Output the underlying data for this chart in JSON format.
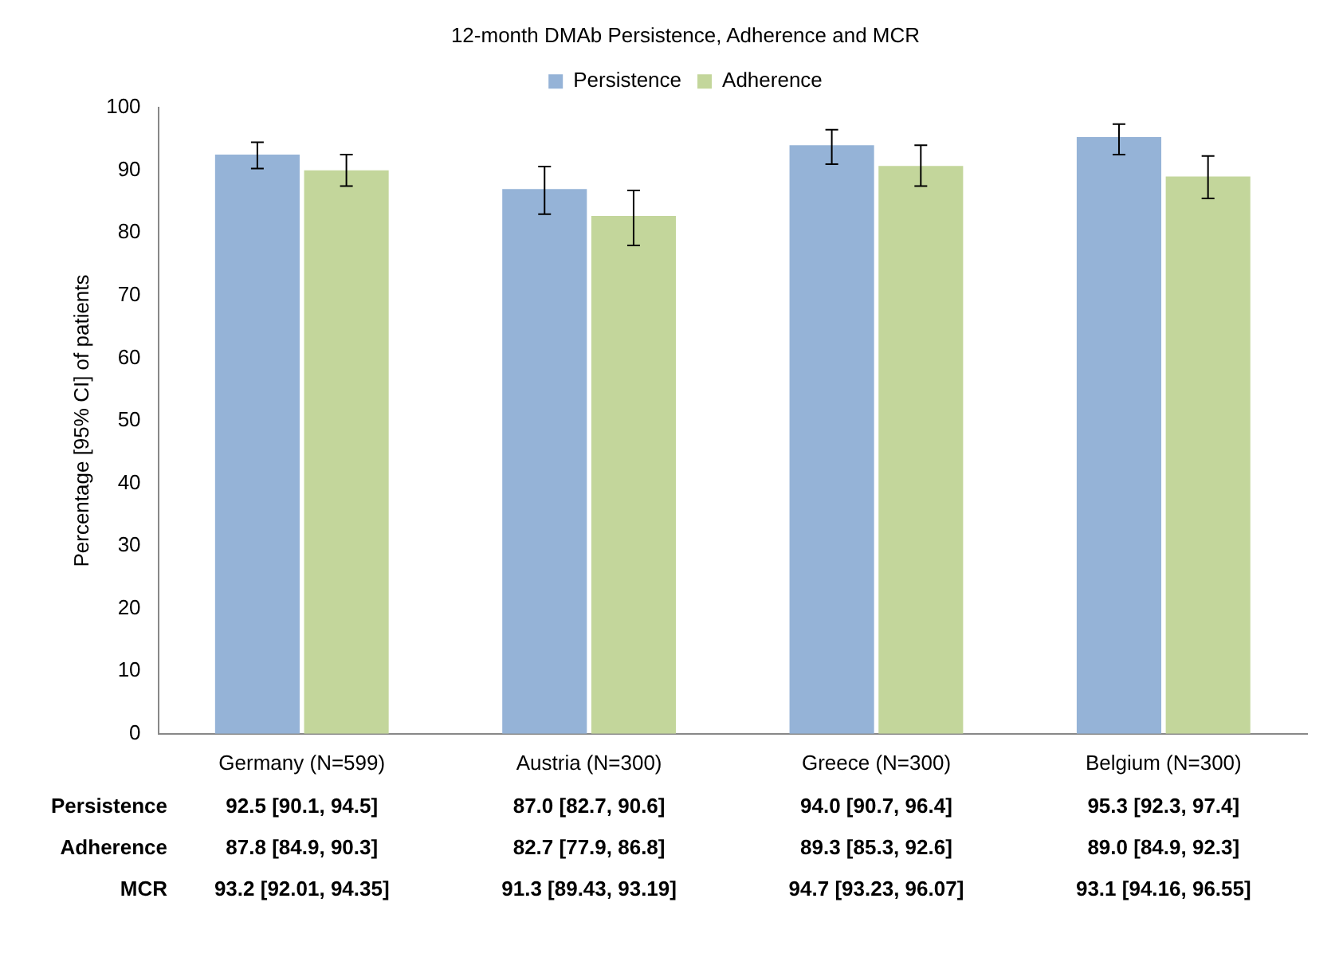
{
  "chart_data": {
    "type": "bar",
    "title": "12-month DMAb Persistence, Adherence and MCR",
    "ylabel": "Percentage [95% CI] of patients",
    "categories": [
      "Germany (N=599)",
      "Austria (N=300)",
      "Greece (N=300)",
      "Belgium (N=300)"
    ],
    "series": [
      {
        "name": "Persistence",
        "color": "#95b3d7",
        "values": [
          92.5,
          87.0,
          94.0,
          95.3
        ],
        "errors": [
          [
            90.3,
            94.5
          ],
          [
            83.0,
            90.6
          ],
          [
            91.0,
            96.5
          ],
          [
            92.5,
            97.4
          ]
        ]
      },
      {
        "name": "Adherence",
        "color": "#c3d69b",
        "values": [
          90.0,
          82.7,
          90.7,
          89.0
        ],
        "errors": [
          [
            87.5,
            92.5
          ],
          [
            78.0,
            86.8
          ],
          [
            87.5,
            94.0
          ],
          [
            85.5,
            92.3
          ]
        ]
      }
    ],
    "annotations": [
      "Persistence",
      "92.5 [90.1, 94.5]",
      "87.0 [82.7, 90.6]",
      "94.0 [90.7, 96.4]",
      "95.3 [92.3, 97.4]",
      "Adherence",
      "87.8 [84.9, 90.3]",
      "82.7 [77.9, 86.8]",
      "89.3 [85.3, 92.6]",
      "89.0 [84.9, 92.3]",
      "MCR",
      "93.2 [92.01, 94.35]",
      "91.3 [89.43, 93.19]",
      "94.7 [93.23, 96.07]",
      "93.1 [94.16, 96.55]"
    ],
    "ylim": [
      0,
      100
    ],
    "yticks": [
      0,
      10,
      20,
      30,
      40,
      50,
      60,
      70,
      80,
      90,
      100
    ],
    "grid": false,
    "legend": "top"
  }
}
